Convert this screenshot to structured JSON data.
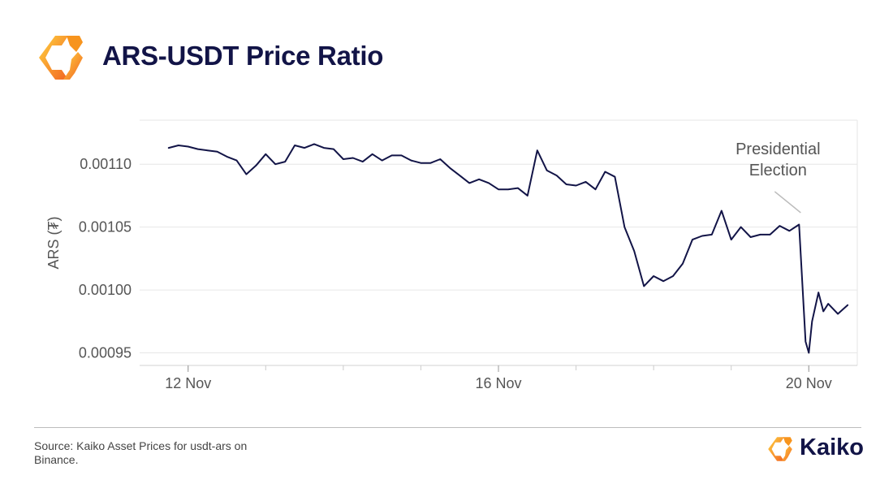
{
  "header": {
    "title": "ARS-USDT Price Ratio",
    "logo_icon": "kaiko-logo-icon"
  },
  "colors": {
    "title": "#121447",
    "line": "#121447",
    "logo_gradient": [
      "#ffd23f",
      "#f26522"
    ],
    "grid": "#e6e6e6",
    "axis_text": "#555555"
  },
  "chart_data": {
    "type": "line",
    "title": "",
    "xlabel": "",
    "ylabel": "ARS (₮)",
    "ylim": [
      0.00094,
      0.001135
    ],
    "yticks": [
      0.00095,
      0.001,
      0.00105,
      0.0011
    ],
    "ytick_labels": [
      "0.00095",
      "0.00100",
      "0.00105",
      "0.00110"
    ],
    "xlim": [
      "2023-11-11T09:00",
      "2023-11-20T15:00"
    ],
    "xtick_labels": [
      "12 Nov",
      "16 Nov",
      "20 Nov"
    ],
    "xtick_values": [
      "2023-11-12",
      "2023-11-16",
      "2023-11-20"
    ],
    "grid": true,
    "annotation": {
      "lines": [
        "Presidential",
        "Election"
      ],
      "x": "2023-11-19T21:00",
      "y": 0.001055
    },
    "series": [
      {
        "x": [
          "2023-11-11T18:00",
          "2023-11-11T21:00",
          "2023-11-12T00:00",
          "2023-11-12T03:00",
          "2023-11-12T06:00",
          "2023-11-12T09:00",
          "2023-11-12T12:00",
          "2023-11-12T15:00",
          "2023-11-12T18:00",
          "2023-11-12T21:00",
          "2023-11-13T00:00",
          "2023-11-13T03:00",
          "2023-11-13T06:00",
          "2023-11-13T09:00",
          "2023-11-13T12:00",
          "2023-11-13T15:00",
          "2023-11-13T18:00",
          "2023-11-13T21:00",
          "2023-11-14T00:00",
          "2023-11-14T03:00",
          "2023-11-14T06:00",
          "2023-11-14T09:00",
          "2023-11-14T12:00",
          "2023-11-14T15:00",
          "2023-11-14T18:00",
          "2023-11-14T21:00",
          "2023-11-15T00:00",
          "2023-11-15T03:00",
          "2023-11-15T06:00",
          "2023-11-15T09:00",
          "2023-11-15T12:00",
          "2023-11-15T15:00",
          "2023-11-15T18:00",
          "2023-11-15T21:00",
          "2023-11-16T00:00",
          "2023-11-16T03:00",
          "2023-11-16T06:00",
          "2023-11-16T09:00",
          "2023-11-16T12:00",
          "2023-11-16T15:00",
          "2023-11-16T18:00",
          "2023-11-16T21:00",
          "2023-11-17T00:00",
          "2023-11-17T03:00",
          "2023-11-17T06:00",
          "2023-11-17T09:00",
          "2023-11-17T12:00",
          "2023-11-17T15:00",
          "2023-11-17T18:00",
          "2023-11-17T21:00",
          "2023-11-18T00:00",
          "2023-11-18T03:00",
          "2023-11-18T06:00",
          "2023-11-18T09:00",
          "2023-11-18T12:00",
          "2023-11-18T15:00",
          "2023-11-18T18:00",
          "2023-11-18T21:00",
          "2023-11-19T00:00",
          "2023-11-19T03:00",
          "2023-11-19T06:00",
          "2023-11-19T09:00",
          "2023-11-19T12:00",
          "2023-11-19T15:00",
          "2023-11-19T18:00",
          "2023-11-19T21:00",
          "2023-11-19T23:00",
          "2023-11-20T00:00",
          "2023-11-20T01:00",
          "2023-11-20T03:00",
          "2023-11-20T04:30",
          "2023-11-20T06:00",
          "2023-11-20T09:00",
          "2023-11-20T12:00"
        ],
        "y": [
          0.001113,
          0.001115,
          0.001114,
          0.001112,
          0.001111,
          0.00111,
          0.001106,
          0.001103,
          0.001092,
          0.001099,
          0.001108,
          0.0011,
          0.001102,
          0.001115,
          0.001113,
          0.001116,
          0.001113,
          0.001112,
          0.001104,
          0.001105,
          0.001102,
          0.001108,
          0.001103,
          0.001107,
          0.001107,
          0.001103,
          0.001101,
          0.001101,
          0.001104,
          0.001097,
          0.001091,
          0.001085,
          0.001088,
          0.001085,
          0.00108,
          0.00108,
          0.001081,
          0.001075,
          0.001111,
          0.001095,
          0.001091,
          0.001084,
          0.001083,
          0.001086,
          0.00108,
          0.001094,
          0.00109,
          0.00105,
          0.001031,
          0.001003,
          0.001011,
          0.001007,
          0.001011,
          0.001021,
          0.00104,
          0.001043,
          0.001044,
          0.001063,
          0.00104,
          0.00105,
          0.001042,
          0.001044,
          0.001044,
          0.001051,
          0.001047,
          0.001052,
          0.000959,
          0.00095,
          0.000975,
          0.000998,
          0.000983,
          0.000989,
          0.000981,
          0.000988
        ]
      }
    ]
  },
  "footer": {
    "source": "Source: Kaiko Asset Prices for usdt-ars on Binance.",
    "brand_name": "Kaiko",
    "brand_icon": "kaiko-brand-icon"
  }
}
